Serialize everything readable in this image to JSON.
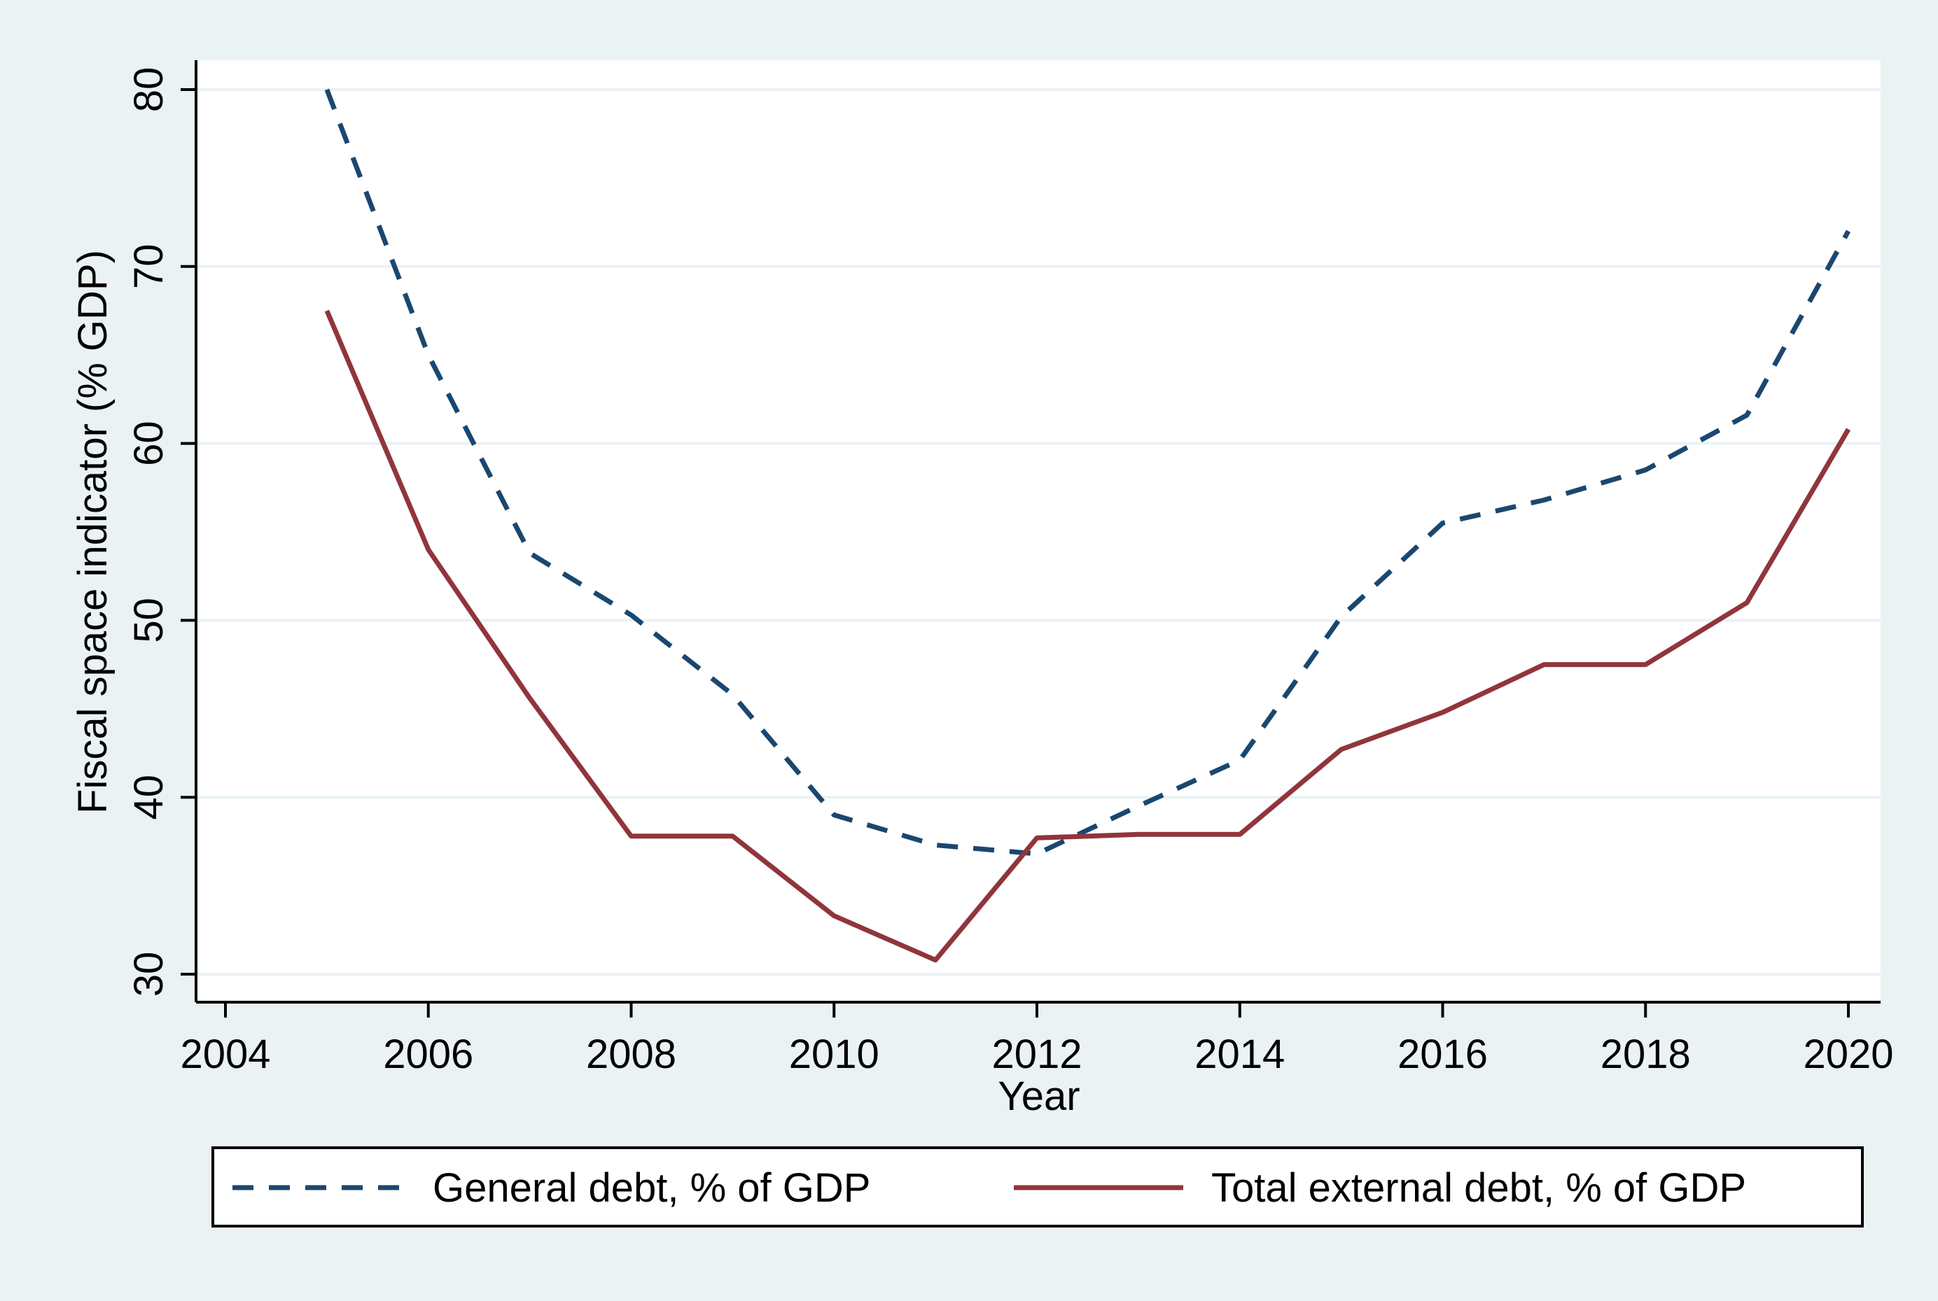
{
  "colors": {
    "outer_background": "#eaf2f3",
    "plot_background": "#ffffff",
    "gridline": "#eaf2f3",
    "axis": "#000000",
    "general_debt": "#1a476f",
    "external_debt": "#90353b"
  },
  "chart_data": {
    "type": "line",
    "title": "",
    "xlabel": "Year",
    "ylabel": "Fiscal space indicator (% GDP)",
    "xlim": [
      2004,
      2020
    ],
    "ylim": [
      30,
      80
    ],
    "x_ticks": [
      2004,
      2006,
      2008,
      2010,
      2012,
      2014,
      2016,
      2018,
      2020
    ],
    "y_ticks": [
      30,
      40,
      50,
      60,
      70,
      80
    ],
    "grid": true,
    "legend_position": "bottom",
    "x": [
      2005,
      2006,
      2007,
      2008,
      2009,
      2010,
      2011,
      2012,
      2013,
      2014,
      2015,
      2016,
      2017,
      2018,
      2019,
      2020
    ],
    "series": [
      {
        "name": "General debt, % of GDP",
        "style": "dashed",
        "values": [
          80.0,
          65.0,
          53.8,
          50.3,
          45.8,
          39.0,
          37.3,
          36.8,
          39.5,
          42.1,
          50.2,
          55.5,
          56.8,
          58.5,
          61.6,
          72.0
        ]
      },
      {
        "name": "Total external debt, % of GDP",
        "style": "solid",
        "values": [
          67.5,
          54.0,
          45.6,
          37.8,
          37.8,
          33.3,
          30.8,
          37.7,
          37.9,
          37.9,
          42.7,
          44.8,
          47.5,
          47.5,
          51.0,
          60.8
        ]
      }
    ]
  }
}
